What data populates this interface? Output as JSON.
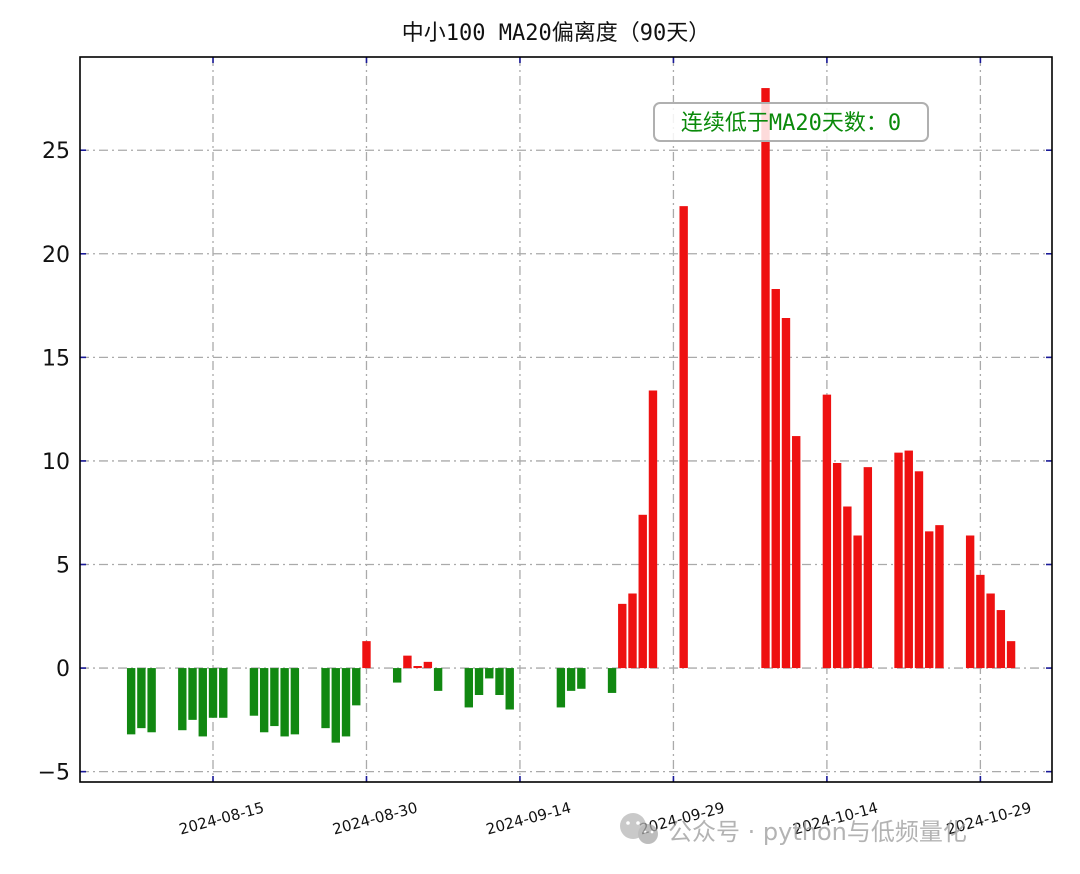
{
  "watermark": {
    "text": "公众号 · python与低频量化"
  },
  "colors": {
    "positive": "#ee1111",
    "negative": "#118811",
    "grid": "#aaaaaa",
    "tick_marks": "#1a1a99",
    "annotation_text": "#0a8a0a"
  },
  "chart_data": {
    "type": "bar",
    "title": "中小100 MA20偏离度（90天）",
    "xlabel": "",
    "ylabel": "",
    "grid": true,
    "ylim": [
      -5.5,
      29.5
    ],
    "yticks": [
      -5,
      0,
      5,
      10,
      15,
      20,
      25
    ],
    "ytick_labels": [
      "−5",
      "0",
      "5",
      "10",
      "15",
      "20",
      "25"
    ],
    "xlim": [
      "2024-08-02",
      "2024-11-05"
    ],
    "xticks": [
      "2024-08-15",
      "2024-08-30",
      "2024-09-14",
      "2024-09-29",
      "2024-10-14",
      "2024-10-29"
    ],
    "x_tick_label_rotation_deg": 15,
    "annotation": {
      "text": "连续低于MA20天数：0",
      "placement": "top-right"
    },
    "dates": [
      "2024-08-07",
      "2024-08-08",
      "2024-08-09",
      "2024-08-12",
      "2024-08-13",
      "2024-08-14",
      "2024-08-15",
      "2024-08-16",
      "2024-08-19",
      "2024-08-20",
      "2024-08-21",
      "2024-08-22",
      "2024-08-23",
      "2024-08-26",
      "2024-08-27",
      "2024-08-28",
      "2024-08-29",
      "2024-08-30",
      "2024-09-02",
      "2024-09-03",
      "2024-09-04",
      "2024-09-05",
      "2024-09-06",
      "2024-09-09",
      "2024-09-10",
      "2024-09-11",
      "2024-09-12",
      "2024-09-13",
      "2024-09-18",
      "2024-09-19",
      "2024-09-20",
      "2024-09-23",
      "2024-09-24",
      "2024-09-25",
      "2024-09-26",
      "2024-09-27",
      "2024-09-30",
      "2024-10-08",
      "2024-10-09",
      "2024-10-10",
      "2024-10-11",
      "2024-10-14",
      "2024-10-15",
      "2024-10-16",
      "2024-10-17",
      "2024-10-18",
      "2024-10-21",
      "2024-10-22",
      "2024-10-23",
      "2024-10-24",
      "2024-10-25",
      "2024-10-28",
      "2024-10-29",
      "2024-10-30",
      "2024-10-31",
      "2024-11-01"
    ],
    "values": [
      -3.2,
      -2.9,
      -3.1,
      -3.0,
      -2.5,
      -3.3,
      -2.4,
      -2.4,
      -2.3,
      -3.1,
      -2.8,
      -3.3,
      -3.2,
      -2.9,
      -3.6,
      -3.3,
      -1.8,
      1.3,
      -0.7,
      0.6,
      0.1,
      0.3,
      -1.1,
      -1.9,
      -1.3,
      -0.5,
      -1.3,
      -2.0,
      -1.9,
      -1.1,
      -1.0,
      -1.2,
      3.1,
      3.6,
      7.4,
      13.4,
      22.3,
      28.0,
      18.3,
      16.9,
      11.2,
      13.2,
      9.9,
      7.8,
      6.4,
      9.7,
      10.4,
      10.5,
      9.5,
      6.6,
      6.9,
      6.4,
      4.5,
      3.6,
      2.8,
      1.3
    ]
  }
}
